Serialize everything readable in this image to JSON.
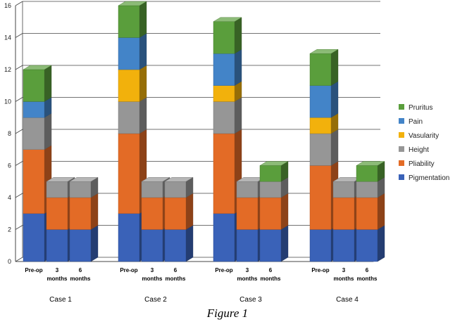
{
  "caption": "Figure 1",
  "chart_data": {
    "type": "bar",
    "stacked": true,
    "style": "3d",
    "ylim": [
      0,
      16
    ],
    "yticks": [
      0,
      2,
      4,
      6,
      8,
      10,
      12,
      14,
      16
    ],
    "grid": true,
    "legend": "right",
    "groups": [
      "Case 1",
      "Case 2",
      "Case 3",
      "Case 4"
    ],
    "categories": [
      {
        "group": "Case 1",
        "label": [
          "Pre-op"
        ]
      },
      {
        "group": "Case 1",
        "label": [
          "3",
          "months"
        ]
      },
      {
        "group": "Case 1",
        "label": [
          "6",
          "months"
        ]
      },
      {
        "group": "Case 2",
        "label": [
          "Pre-op"
        ]
      },
      {
        "group": "Case 2",
        "label": [
          "3",
          "months"
        ]
      },
      {
        "group": "Case 2",
        "label": [
          "6",
          "months"
        ]
      },
      {
        "group": "Case 3",
        "label": [
          "Pre-op"
        ]
      },
      {
        "group": "Case 3",
        "label": [
          "3",
          "months"
        ]
      },
      {
        "group": "Case 3",
        "label": [
          "6",
          "months"
        ]
      },
      {
        "group": "Case 4",
        "label": [
          "Pre-op"
        ]
      },
      {
        "group": "Case 4",
        "label": [
          "3",
          "months"
        ]
      },
      {
        "group": "Case 4",
        "label": [
          "6",
          "months"
        ]
      }
    ],
    "series": [
      {
        "name": "Pigmentation",
        "color": "#3A62B8",
        "values": [
          3,
          2,
          2,
          3,
          2,
          2,
          3,
          2,
          2,
          2,
          2,
          2
        ]
      },
      {
        "name": "Pliability",
        "color": "#E36B26",
        "values": [
          4,
          2,
          2,
          5,
          2,
          2,
          5,
          2,
          2,
          4,
          2,
          2
        ]
      },
      {
        "name": "Height",
        "color": "#969696",
        "values": [
          2,
          1,
          1,
          2,
          1,
          1,
          2,
          1,
          1,
          2,
          1,
          1
        ]
      },
      {
        "name": "Vasularity",
        "color": "#F2B10C",
        "values": [
          0,
          0,
          0,
          2,
          0,
          0,
          1,
          0,
          0,
          1,
          0,
          0
        ]
      },
      {
        "name": "Pain",
        "color": "#4384C8",
        "values": [
          1,
          0,
          0,
          2,
          0,
          0,
          2,
          0,
          0,
          2,
          0,
          0
        ]
      },
      {
        "name": "Pruritus",
        "color": "#5A9E3C",
        "values": [
          2,
          0,
          0,
          2,
          0,
          0,
          2,
          0,
          1,
          2,
          0,
          1
        ]
      }
    ]
  }
}
